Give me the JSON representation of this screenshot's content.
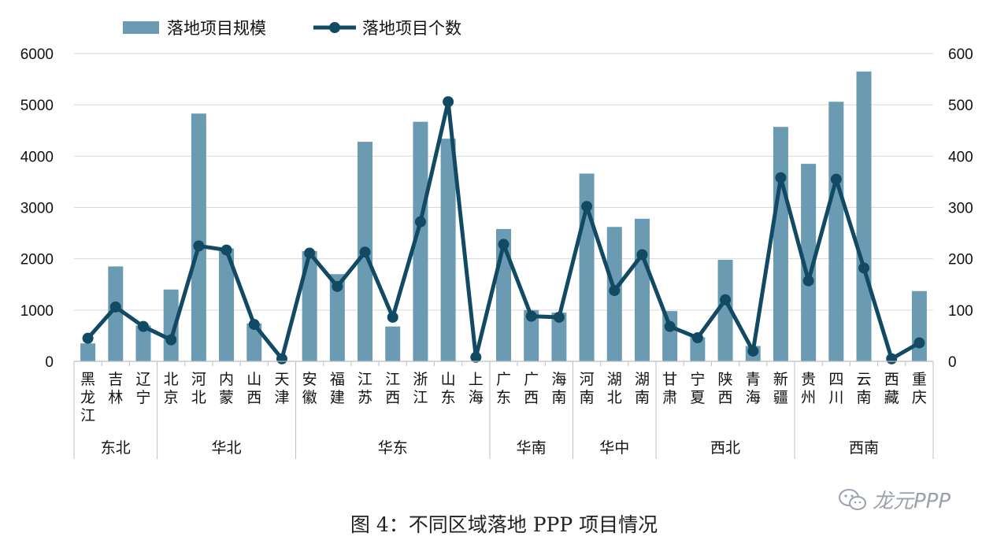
{
  "chart_data": {
    "type": "bar",
    "categories": [
      [
        "黑",
        "龙",
        "江"
      ],
      [
        "吉",
        "林"
      ],
      [
        "辽",
        "宁"
      ],
      [
        "北",
        "京"
      ],
      [
        "河",
        "北"
      ],
      [
        "内",
        "蒙"
      ],
      [
        "山",
        "西"
      ],
      [
        "天",
        "津"
      ],
      [
        "安",
        "徽"
      ],
      [
        "福",
        "建"
      ],
      [
        "江",
        "苏"
      ],
      [
        "江",
        "西"
      ],
      [
        "浙",
        "江"
      ],
      [
        "山",
        "东"
      ],
      [
        "上",
        "海"
      ],
      [
        "广",
        "东"
      ],
      [
        "广",
        "西"
      ],
      [
        "海",
        "南"
      ],
      [
        "河",
        "南"
      ],
      [
        "湖",
        "北"
      ],
      [
        "湖",
        "南"
      ],
      [
        "甘",
        "肃"
      ],
      [
        "宁",
        "夏"
      ],
      [
        "陕",
        "西"
      ],
      [
        "青",
        "海"
      ],
      [
        "新",
        "疆"
      ],
      [
        "贵",
        "州"
      ],
      [
        "四",
        "川"
      ],
      [
        "云",
        "南"
      ],
      [
        "西",
        "藏"
      ],
      [
        "重",
        "庆"
      ]
    ],
    "groups": [
      {
        "name": "东北",
        "count": 3
      },
      {
        "name": "华北",
        "count": 5
      },
      {
        "name": "华东",
        "count": 7
      },
      {
        "name": "华南",
        "count": 3
      },
      {
        "name": "华中",
        "count": 3
      },
      {
        "name": "西北",
        "count": 5
      },
      {
        "name": "西南",
        "count": 5
      }
    ],
    "series": [
      {
        "name": "落地项目规模",
        "kind": "bar",
        "axis": "left",
        "color": "#6b9bb2",
        "values": [
          350,
          1850,
          700,
          1400,
          4830,
          2200,
          740,
          0,
          2150,
          1700,
          4280,
          680,
          4670,
          4340,
          0,
          2580,
          1000,
          950,
          3660,
          2620,
          2780,
          980,
          470,
          1980,
          300,
          4570,
          3850,
          5060,
          5650,
          0,
          1370
        ]
      },
      {
        "name": "落地项目个数",
        "kind": "line",
        "axis": "right",
        "color": "#124a63",
        "values": [
          45,
          106,
          68,
          42,
          225,
          217,
          72,
          5,
          211,
          146,
          213,
          86,
          272,
          506,
          8,
          228,
          88,
          86,
          302,
          138,
          208,
          68,
          46,
          120,
          20,
          358,
          157,
          355,
          182,
          5,
          36
        ]
      }
    ],
    "left_axis": {
      "ylim": [
        0,
        6000
      ],
      "ticks": [
        0,
        1000,
        2000,
        3000,
        4000,
        5000,
        6000
      ]
    },
    "right_axis": {
      "ylim": [
        0,
        600
      ],
      "ticks": [
        0,
        100,
        200,
        300,
        400,
        500,
        600
      ]
    },
    "grid": true,
    "legend": "top-left",
    "caption": "图 4：不同区域落地 PPP 项目情况"
  },
  "watermark": {
    "text": "龙元PPP",
    "icon": "wechat-icon"
  }
}
